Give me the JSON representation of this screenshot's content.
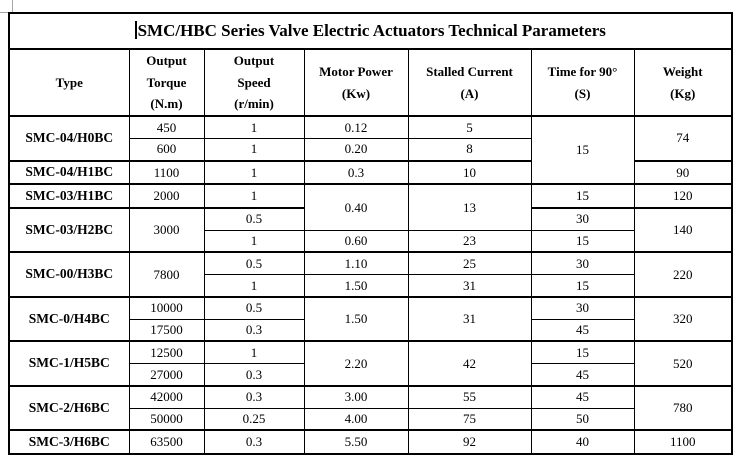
{
  "title": "SMC/HBC Series Valve Electric Actuators Technical Parameters",
  "colors": {
    "text": "#000000",
    "border": "#000000",
    "background": "#ffffff",
    "corner_mark": "#a6a6a6"
  },
  "table": {
    "headers": [
      [
        "Type"
      ],
      [
        "Output",
        "Torque",
        "(N.m)"
      ],
      [
        "Output",
        "Speed",
        "(r/min)"
      ],
      [
        "Motor Power",
        "(Kw)"
      ],
      [
        "Stalled Current",
        "(A)"
      ],
      [
        "Time for 90°",
        "(S)"
      ],
      [
        "Weight",
        "(Kg)"
      ]
    ],
    "rows": [
      {
        "group_start": true,
        "cells": [
          {
            "text": "SMC-04/H0BC",
            "rowspan": 2,
            "bold": true
          },
          {
            "text": "450"
          },
          {
            "text": "1"
          },
          {
            "text": "0.12"
          },
          {
            "text": "5"
          },
          {
            "text": "15",
            "rowspan": 3
          },
          {
            "text": "74",
            "rowspan": 2
          }
        ]
      },
      {
        "group_start": false,
        "cells": [
          {
            "text": "600"
          },
          {
            "text": "1"
          },
          {
            "text": "0.20"
          },
          {
            "text": "8"
          }
        ]
      },
      {
        "group_start": true,
        "cells": [
          {
            "text": "SMC-04/H1BC",
            "bold": true
          },
          {
            "text": "1100"
          },
          {
            "text": "1"
          },
          {
            "text": "0.3"
          },
          {
            "text": "10"
          },
          {
            "text": "90"
          }
        ]
      },
      {
        "group_start": true,
        "cells": [
          {
            "text": "SMC-03/H1BC",
            "bold": true
          },
          {
            "text": "2000"
          },
          {
            "text": "1"
          },
          {
            "text": "0.40",
            "rowspan": 2
          },
          {
            "text": "13",
            "rowspan": 2
          },
          {
            "text": "15"
          },
          {
            "text": "120"
          }
        ]
      },
      {
        "group_start": true,
        "cells": [
          {
            "text": "SMC-03/H2BC",
            "rowspan": 2,
            "bold": true
          },
          {
            "text": "3000",
            "rowspan": 2
          },
          {
            "text": "0.5"
          },
          {
            "text": "30"
          },
          {
            "text": "140",
            "rowspan": 2
          }
        ]
      },
      {
        "group_start": false,
        "cells": [
          {
            "text": "1"
          },
          {
            "text": "0.60"
          },
          {
            "text": "23"
          },
          {
            "text": "15"
          }
        ]
      },
      {
        "group_start": true,
        "cells": [
          {
            "text": "SMC-00/H3BC",
            "rowspan": 2,
            "bold": true
          },
          {
            "text": "7800",
            "rowspan": 2
          },
          {
            "text": "0.5"
          },
          {
            "text": "1.10"
          },
          {
            "text": "25"
          },
          {
            "text": "30"
          },
          {
            "text": "220",
            "rowspan": 2
          }
        ]
      },
      {
        "group_start": false,
        "cells": [
          {
            "text": "1"
          },
          {
            "text": "1.50"
          },
          {
            "text": "31"
          },
          {
            "text": "15"
          }
        ]
      },
      {
        "group_start": true,
        "cells": [
          {
            "text": "SMC-0/H4BC",
            "rowspan": 2,
            "bold": true
          },
          {
            "text": "10000"
          },
          {
            "text": "0.5"
          },
          {
            "text": "1.50",
            "rowspan": 2
          },
          {
            "text": "31",
            "rowspan": 2
          },
          {
            "text": "30"
          },
          {
            "text": "320",
            "rowspan": 2
          }
        ]
      },
      {
        "group_start": false,
        "cells": [
          {
            "text": "17500"
          },
          {
            "text": "0.3"
          },
          {
            "text": "45"
          }
        ]
      },
      {
        "group_start": true,
        "cells": [
          {
            "text": "SMC-1/H5BC",
            "rowspan": 2,
            "bold": true
          },
          {
            "text": "12500"
          },
          {
            "text": "1"
          },
          {
            "text": "2.20",
            "rowspan": 2
          },
          {
            "text": "42",
            "rowspan": 2
          },
          {
            "text": "15"
          },
          {
            "text": "520",
            "rowspan": 2
          }
        ]
      },
      {
        "group_start": false,
        "cells": [
          {
            "text": "27000"
          },
          {
            "text": "0.3"
          },
          {
            "text": "45"
          }
        ]
      },
      {
        "group_start": true,
        "cells": [
          {
            "text": "SMC-2/H6BC",
            "rowspan": 2,
            "bold": true
          },
          {
            "text": "42000"
          },
          {
            "text": "0.3"
          },
          {
            "text": "3.00"
          },
          {
            "text": "55"
          },
          {
            "text": "45"
          },
          {
            "text": "780",
            "rowspan": 2
          }
        ]
      },
      {
        "group_start": false,
        "cells": [
          {
            "text": "50000"
          },
          {
            "text": "0.25"
          },
          {
            "text": "4.00"
          },
          {
            "text": "75"
          },
          {
            "text": "50"
          }
        ]
      },
      {
        "group_start": true,
        "cells": [
          {
            "text": "SMC-3/H6BC",
            "bold": true
          },
          {
            "text": "63500"
          },
          {
            "text": "0.3"
          },
          {
            "text": "5.50"
          },
          {
            "text": "92"
          },
          {
            "text": "40"
          },
          {
            "text": "1100"
          }
        ]
      }
    ]
  }
}
